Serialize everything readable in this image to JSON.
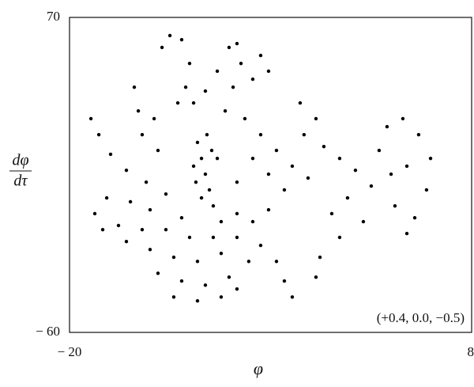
{
  "chart_data": {
    "type": "scatter",
    "xlabel": "φ",
    "ylabel": {
      "numerator": "dφ",
      "denominator": "dτ"
    },
    "annotation": "(+0.4, 0.0, −0.5)",
    "color": "#000000",
    "xlim": [
      -20,
      8
    ],
    "xticks": [
      {
        "value": -20,
        "label": "− 20"
      },
      8
    ],
    "ylim": [
      -60,
      70
    ],
    "yticks": [
      {
        "value": -60,
        "label": "− 60"
      },
      70
    ],
    "x": [
      -11.09,
      -10.81,
      -10.54,
      -10.26,
      -9.99,
      -11.2,
      -9.71,
      -10.43,
      -9.44,
      -10.81,
      -10.1,
      -11.36,
      -18.51,
      -17.96,
      -17.14,
      -16.04,
      -14.66,
      -13.29,
      -18.24,
      -16.59,
      -14.94,
      -17.41,
      -15.76,
      -14.39,
      -15.49,
      -15.21,
      -14.94,
      -14.11,
      -13.84,
      -13.56,
      -13.01,
      -12.19,
      -11.64,
      -11.91,
      -12.46,
      -11.36,
      -10.54,
      -9.71,
      -8.89,
      -8.34,
      -8.06,
      -8.61,
      -9.16,
      -7.24,
      -6.69,
      -6.14,
      -7.79,
      -6.69,
      -5.59,
      -4.49,
      -3.39,
      -7.24,
      -6.14,
      -5.04,
      -8.34,
      -3.94,
      -2.84,
      -3.67,
      -2.29,
      -1.19,
      -0.09,
      1.01,
      2.11,
      3.21,
      4.31,
      5.14,
      4.86,
      4.04,
      3.49,
      2.66,
      2.39,
      3.49,
      1.56,
      -17.69,
      -16.04,
      -14.39,
      -12.74,
      -11.09,
      -9.44,
      -8.34,
      -7.24,
      -6.14,
      -13.84,
      -12.19,
      -10.54,
      -8.89,
      -7.52,
      -6.69,
      -5.59,
      -5.04,
      -4.49,
      -2.84,
      -2.56,
      -12.74,
      -11.09,
      -9.44,
      -8.34,
      -11.64,
      -9.99,
      -13.29,
      -12.19,
      -8.34,
      -1.74,
      -0.64,
      0.46,
      -1.19
    ],
    "values": [
      18.4,
      11.8,
      5.3,
      -1.2,
      -7.8,
      2.0,
      11.8,
      21.6,
      -14.3,
      -4.5,
      15.1,
      8.6,
      28.2,
      21.6,
      13.5,
      6.9,
      2.0,
      -2.9,
      -11.0,
      -15.9,
      -17.6,
      -4.5,
      -6.1,
      -9.4,
      41.2,
      31.4,
      21.6,
      28.2,
      15.1,
      57.6,
      62.5,
      60.8,
      51.0,
      41.2,
      34.7,
      34.7,
      39.6,
      47.8,
      57.6,
      59.2,
      51.0,
      41.2,
      31.4,
      44.5,
      54.3,
      47.8,
      28.2,
      21.6,
      15.1,
      8.6,
      3.7,
      11.8,
      5.3,
      -1.2,
      2.0,
      34.7,
      28.2,
      21.6,
      16.7,
      11.8,
      6.9,
      0.4,
      24.9,
      28.2,
      21.6,
      11.8,
      -1.2,
      -12.7,
      -19.2,
      -7.8,
      5.3,
      8.6,
      15.1,
      -17.6,
      -22.5,
      -25.8,
      -29.0,
      -30.7,
      -27.4,
      -20.8,
      -14.3,
      -9.4,
      -35.6,
      -38.8,
      -40.5,
      -37.2,
      -30.7,
      -24.1,
      -30.7,
      -38.8,
      -45.4,
      -37.2,
      -29.0,
      -45.4,
      -47.0,
      -45.4,
      -42.1,
      -20.8,
      -20.8,
      -17.6,
      -12.7,
      -11.0,
      -11.0,
      -4.5,
      -14.3,
      -20.8
    ]
  }
}
